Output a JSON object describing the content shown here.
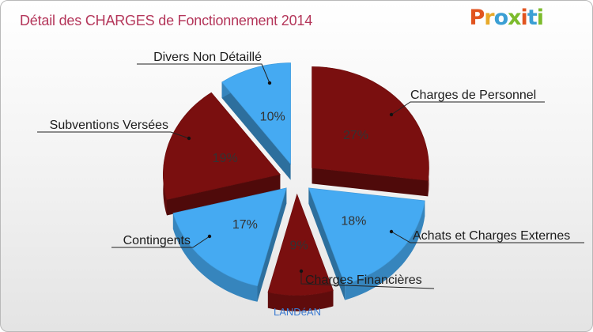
{
  "header": {
    "title": "Détail des CHARGES de Fonctionnement 2014",
    "logo": "Proxiti",
    "logo_colors": [
      "#e1541f",
      "#e8a92a",
      "#3b9fd4",
      "#7cbb2c",
      "#e1541f",
      "#3b9fd4",
      "#7cbb2c"
    ]
  },
  "footer": {
    "commune": "LANDéAN"
  },
  "chart_data": {
    "type": "pie",
    "title": "Détail des CHARGES de Fonctionnement 2014",
    "colors": {
      "dark": "#7a0f0f",
      "light": "#45aaf2"
    },
    "slices": [
      {
        "label": "Charges de Personnel",
        "value": 27,
        "pct_label": "27%",
        "color": "dark"
      },
      {
        "label": "Achats et Charges Externes",
        "value": 18,
        "pct_label": "18%",
        "color": "light"
      },
      {
        "label": "Charges Financières",
        "value": 9,
        "pct_label": "9%",
        "color": "dark"
      },
      {
        "label": "Contingents",
        "value": 17,
        "pct_label": "17%",
        "color": "light"
      },
      {
        "label": "Subventions Versées",
        "value": 19,
        "pct_label": "19%",
        "color": "dark"
      },
      {
        "label": "Divers Non Détaillé",
        "value": 10,
        "pct_label": "10%",
        "color": "light"
      }
    ]
  }
}
